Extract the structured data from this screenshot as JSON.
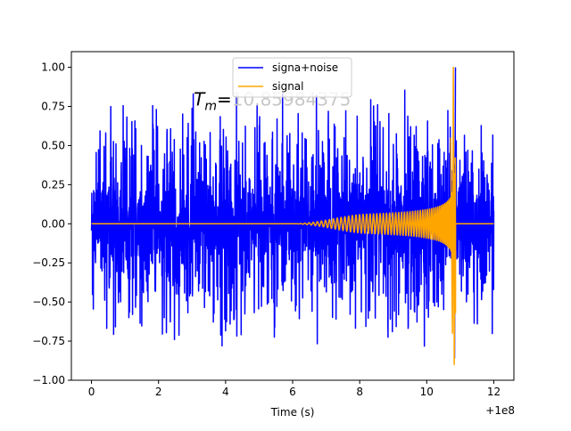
{
  "chart_data": {
    "type": "line",
    "title": "",
    "xlabel": "Time (s)",
    "ylabel": "",
    "x_offset_label": "+1e8",
    "xlim": [
      -0.6,
      12.6
    ],
    "ylim": [
      -1.0,
      1.1
    ],
    "x_ticks": [
      0,
      2,
      4,
      6,
      8,
      10,
      12
    ],
    "x_tick_labels": [
      "0",
      "2",
      "4",
      "6",
      "8",
      "10",
      "12"
    ],
    "y_ticks": [
      -1.0,
      -0.75,
      -0.5,
      -0.25,
      0.0,
      0.25,
      0.5,
      0.75,
      1.0
    ],
    "y_tick_labels": [
      "−1.00",
      "−0.75",
      "−0.50",
      "−0.25",
      "0.00",
      "0.25",
      "0.50",
      "0.75",
      "1.00"
    ],
    "grid": false,
    "legend_position": "top-center",
    "annotation": {
      "prefix": "T",
      "subscript": "m",
      "equals": "=",
      "value": "10.85984375",
      "x": 3.05,
      "y": 0.8
    },
    "series": [
      {
        "name": "signa+noise",
        "color": "#0000ff",
        "description_x": [
          0,
          12
        ],
        "envelope_max": 0.68,
        "noise_range_min": -0.78,
        "noise_range_max": 0.83,
        "spike_max_x": 10.83,
        "spike_max_y": 1.0,
        "spike_min_x": 10.83,
        "spike_min_y": -0.86
      },
      {
        "name": "signal",
        "color": "#ffa500",
        "x_start": 0,
        "x_end": 12,
        "onset": 6.0,
        "merger_time": 10.85984375,
        "peak_max": 1.0,
        "peak_min": -0.9
      }
    ]
  }
}
